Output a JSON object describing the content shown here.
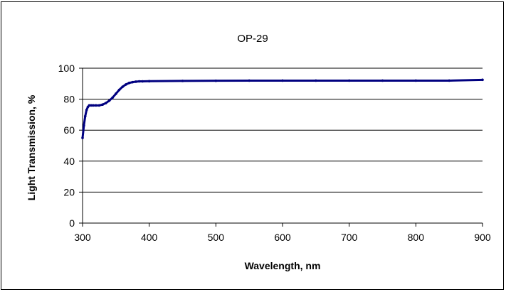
{
  "chart_data": {
    "type": "line",
    "title": "OP-29",
    "xlabel": "Wavelength, nm",
    "ylabel": "Light Transmission, %",
    "xlim": [
      300,
      900
    ],
    "ylim": [
      0,
      100
    ],
    "x_ticks": [
      300,
      400,
      500,
      600,
      700,
      800,
      900
    ],
    "y_ticks": [
      0,
      20,
      40,
      60,
      80,
      100
    ],
    "grid": "horizontal",
    "legend": "none",
    "series": [
      {
        "color": "#000080",
        "x": [
          300,
          302,
          304,
          306,
          308,
          310,
          313,
          316,
          320,
          325,
          330,
          335,
          340,
          345,
          350,
          355,
          360,
          365,
          370,
          375,
          380,
          385,
          390,
          400,
          450,
          500,
          550,
          600,
          650,
          700,
          750,
          800,
          850,
          900
        ],
        "y": [
          55,
          63,
          69,
          73,
          75,
          76,
          76,
          76,
          76,
          76,
          76.5,
          77.5,
          79,
          81,
          83.5,
          86,
          88,
          89.5,
          90.5,
          91,
          91.3,
          91.5,
          91.5,
          91.6,
          91.8,
          91.9,
          92,
          92,
          92,
          92,
          92,
          92,
          92,
          92.5
        ]
      }
    ]
  }
}
